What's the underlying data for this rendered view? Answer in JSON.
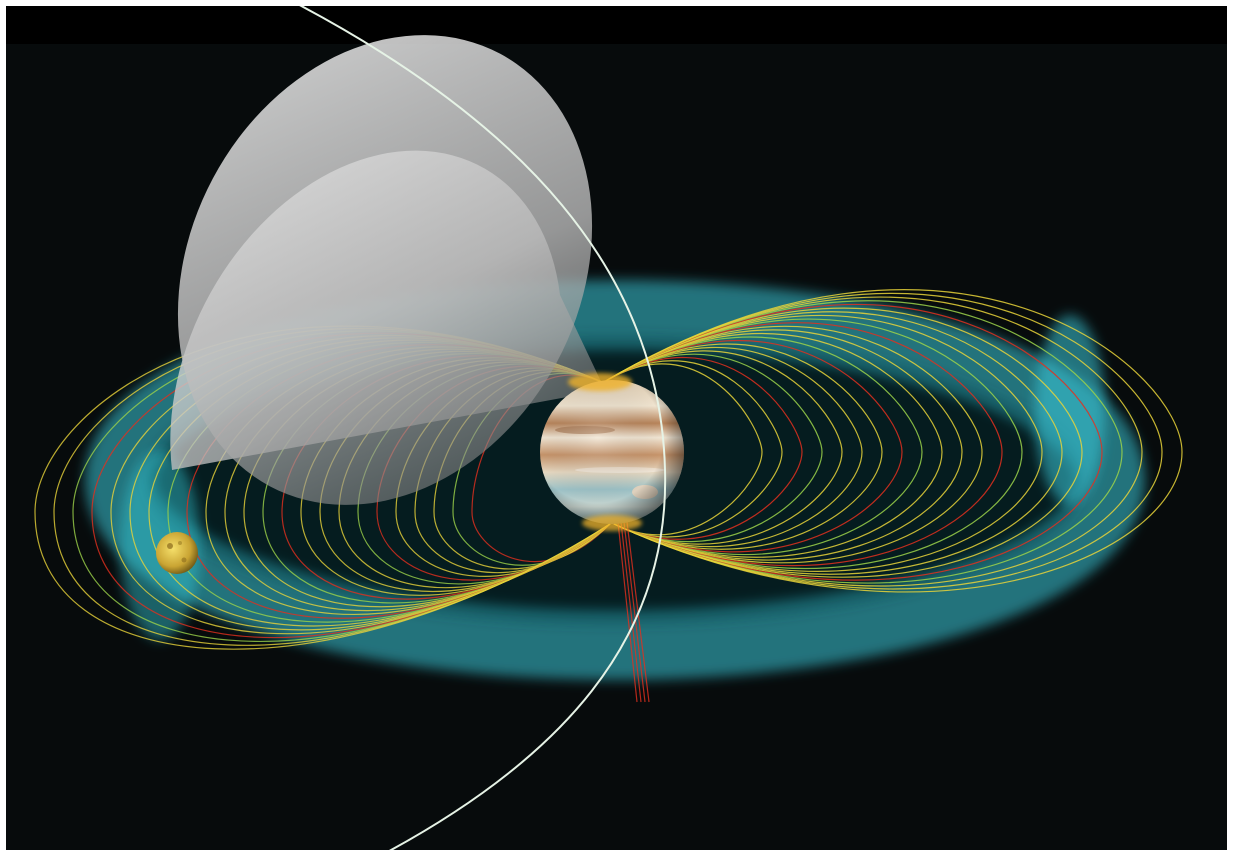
{
  "scene": {
    "background_color": "#070b0c",
    "frame_color": "#ffffff",
    "objects": {
      "planet": "jupiter",
      "moon": "io",
      "torus": "io-plasma-torus",
      "cone": "radio-emission-cone",
      "orbit": "spacecraft-trajectory",
      "field_lines": "magnetic-field-lines"
    },
    "colors": {
      "torus": "#38c9d8",
      "field_yellow": "#e8d33a",
      "field_red": "#e2301e",
      "field_green": "#9cd24a",
      "cone": "#d9d9d9",
      "trajectory": "#e6f3e6",
      "moon": "#d6b23c",
      "planet_band_light": "#efe3cf",
      "planet_band_dark": "#b8845a",
      "planet_band_blue": "#9cc1c6"
    }
  }
}
